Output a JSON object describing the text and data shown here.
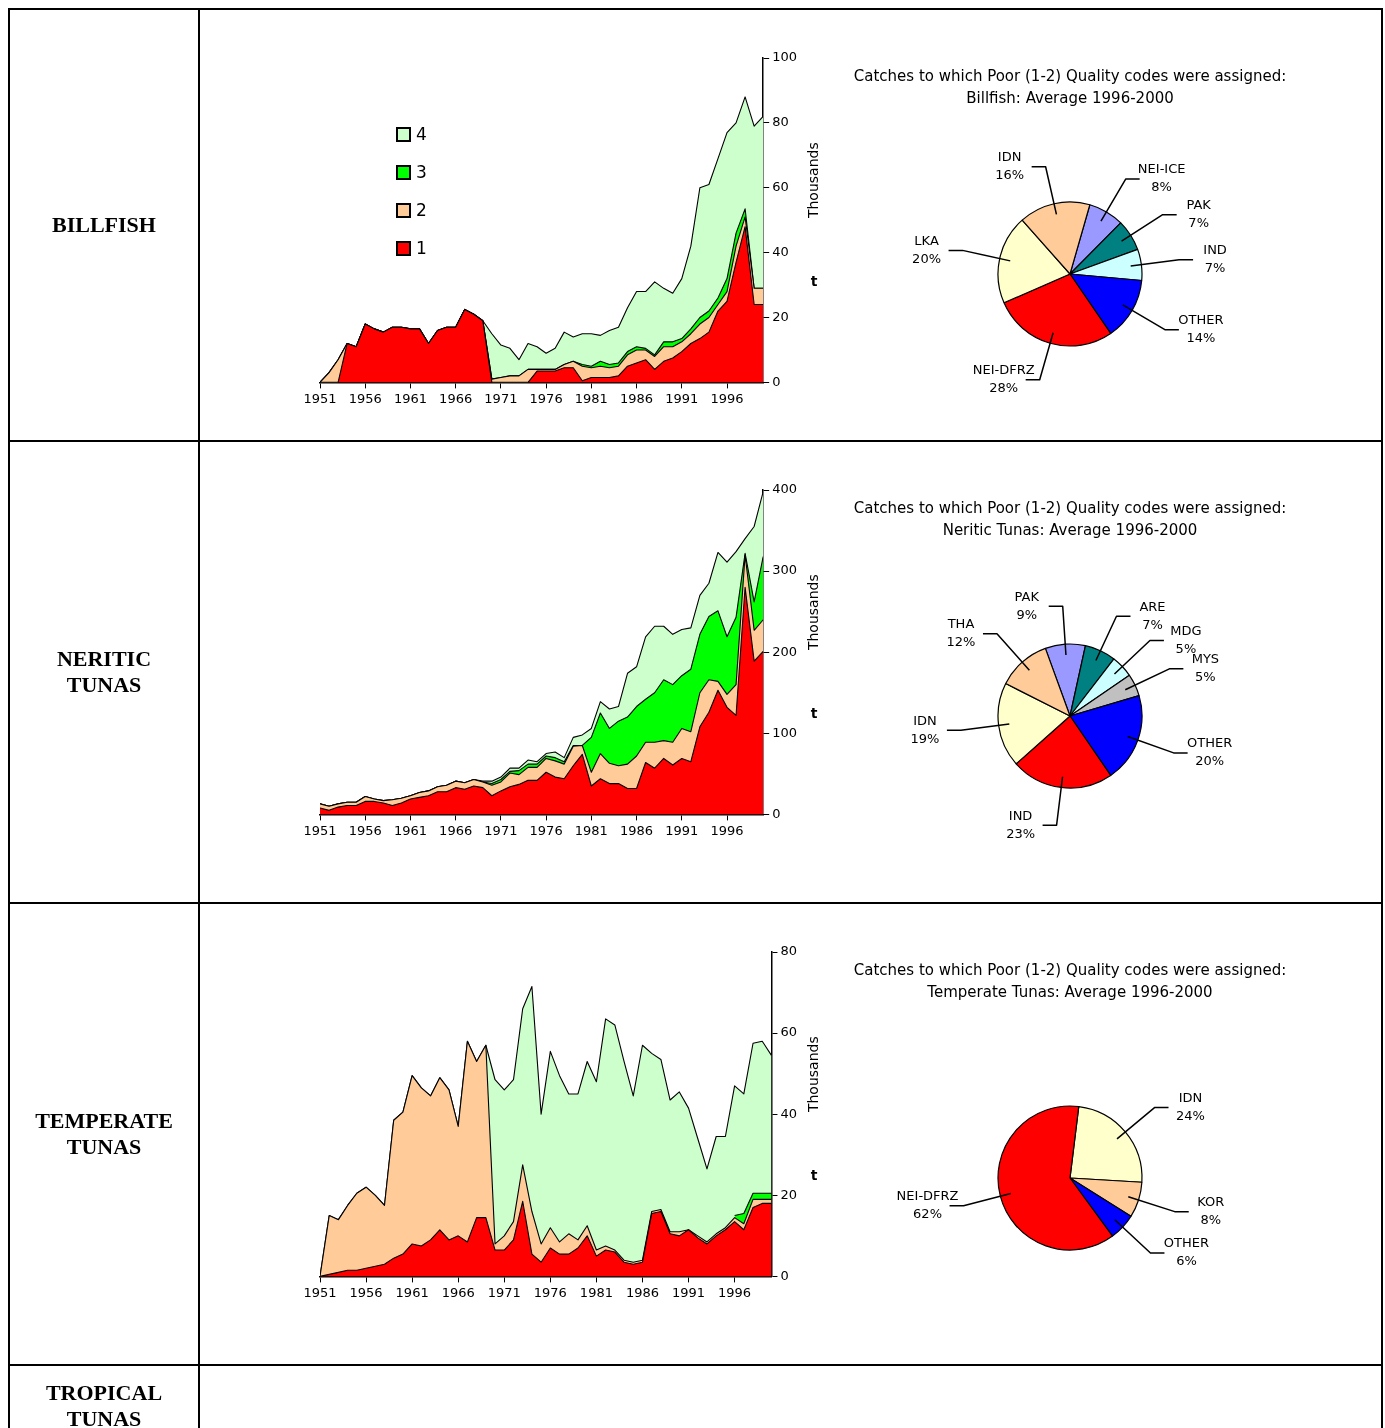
{
  "chart_data": [
    {
      "type": "other",
      "title": "BILLFISH"
    },
    {
      "type": "area",
      "ylabel": "Thousands",
      "annotations": [
        "t"
      ],
      "stacked": true,
      "legend": "top left",
      "marker": "none",
      "x": [
        1951,
        1952,
        1953,
        1954,
        1955,
        1956,
        1957,
        1958,
        1959,
        1960,
        1961,
        1962,
        1963,
        1964,
        1965,
        1966,
        1967,
        1968,
        1969,
        1970,
        1971,
        1972,
        1973,
        1974,
        1975,
        1976,
        1977,
        1978,
        1979,
        1980,
        1981,
        1982,
        1983,
        1984,
        1985,
        1986,
        1987,
        1988,
        1989,
        1990,
        1991,
        1992,
        1993,
        1994,
        1995,
        1996,
        1997,
        1998,
        1999,
        2000
      ],
      "xlim": [
        1951,
        2000
      ],
      "xticks": [
        1951,
        1956,
        1961,
        1966,
        1971,
        1976,
        1981,
        1986,
        1991,
        1996
      ],
      "ylim": [
        0,
        100
      ],
      "yticks": [
        0,
        20,
        40,
        60,
        80,
        100
      ],
      "series": [
        {
          "name": "1",
          "color": "#ff0000",
          "values": [
            0,
            0,
            0,
            12,
            11,
            18,
            16.5,
            15.5,
            17,
            17,
            16.5,
            16.5,
            12,
            16,
            17,
            17,
            22.5,
            21,
            19,
            0,
            0,
            0,
            0,
            0,
            3.5,
            3.5,
            3.5,
            4.5,
            4.5,
            0.5,
            1.5,
            1.5,
            1.5,
            2,
            5,
            6,
            7,
            4,
            6.5,
            7.5,
            9.5,
            12,
            13.5,
            15.5,
            22,
            25,
            37,
            48,
            24,
            24
          ]
        },
        {
          "name": "2",
          "color": "#ffcc99",
          "values": [
            0,
            3,
            7,
            0,
            0,
            0,
            0,
            0,
            0,
            0,
            0,
            0,
            0,
            0,
            0,
            0,
            0,
            0,
            0,
            1,
            1.5,
            2,
            2,
            4,
            0.5,
            0.5,
            0.5,
            1,
            2,
            4.5,
            3,
            3.5,
            3,
            3,
            3.5,
            4,
            3,
            4,
            4.5,
            3.5,
            3,
            3,
            4.5,
            4.5,
            2,
            3,
            5,
            3,
            5,
            5
          ]
        },
        {
          "name": "3",
          "color": "#00ff00",
          "values": [
            0,
            0,
            0,
            0,
            0,
            0,
            0,
            0,
            0,
            0,
            0,
            0,
            0,
            0,
            0,
            0,
            0,
            0,
            0,
            0,
            0,
            0,
            0,
            0,
            0,
            0,
            0,
            0,
            0,
            0.5,
            0.5,
            1.5,
            1,
            1,
            1,
            1,
            0.5,
            0.5,
            1.5,
            1.5,
            1,
            1.5,
            2,
            2,
            2,
            4,
            4,
            2.5,
            0,
            0
          ]
        },
        {
          "name": "4",
          "color": "#ccffcc",
          "values": [
            0,
            0,
            0,
            0,
            0,
            0,
            0,
            0,
            0,
            0,
            0,
            0,
            0,
            0,
            0,
            0,
            0,
            0,
            0,
            14,
            10,
            8.5,
            5,
            8,
            7,
            5,
            6.5,
            10,
            7.5,
            9.5,
            10,
            8,
            10.5,
            11,
            13.5,
            17,
            17.5,
            22.5,
            16.5,
            15,
            18.5,
            25.5,
            40,
            39,
            43,
            45,
            34,
            34.5,
            50,
            53
          ]
        }
      ]
    },
    {
      "type": "pie",
      "title": "Catches to which Poor (1-2) Quality codes were assigned:",
      "subtitle": "Billfish: Average 1996-2000",
      "categories": [
        "NEI-ICE",
        "PAK",
        "IND",
        "OTHER",
        "NEI-DFRZ",
        "LKA",
        "IDN"
      ],
      "values": [
        8,
        7,
        7,
        14,
        28,
        20,
        16
      ],
      "colors": [
        "#9999ff",
        "#008080",
        "#ccffff",
        "#0000ff",
        "#ff0000",
        "#ffffcc",
        "#ffcc99"
      ],
      "value_labels": [
        "8%",
        "7%",
        "7%",
        "14%",
        "28%",
        "20%",
        "16%"
      ]
    },
    {
      "type": "other",
      "title": "NERITIC TUNAS"
    },
    {
      "type": "area",
      "ylabel": "Thousands",
      "annotations": [
        "t"
      ],
      "stacked": true,
      "marker": "none",
      "x": [
        1951,
        1952,
        1953,
        1954,
        1955,
        1956,
        1957,
        1958,
        1959,
        1960,
        1961,
        1962,
        1963,
        1964,
        1965,
        1966,
        1967,
        1968,
        1969,
        1970,
        1971,
        1972,
        1973,
        1974,
        1975,
        1976,
        1977,
        1978,
        1979,
        1980,
        1981,
        1982,
        1983,
        1984,
        1985,
        1986,
        1987,
        1988,
        1989,
        1990,
        1991,
        1992,
        1993,
        1994,
        1995,
        1996,
        1997,
        1998,
        1999,
        2000
      ],
      "xlim": [
        1951,
        2000
      ],
      "xticks": [
        1951,
        1956,
        1961,
        1966,
        1971,
        1976,
        1981,
        1986,
        1991,
        1996
      ],
      "ylim": [
        0,
        400
      ],
      "yticks": [
        0,
        100,
        200,
        300,
        400
      ],
      "series": [
        {
          "color": "#ff0000",
          "values": [
            8,
            5,
            9,
            11,
            11,
            16,
            16,
            14,
            11,
            14,
            19,
            21,
            23,
            28,
            28,
            33,
            31,
            35,
            33,
            23,
            29,
            34,
            37,
            42,
            42,
            52,
            46,
            44,
            60,
            74,
            35,
            44,
            38,
            38,
            32,
            32,
            64,
            57,
            69,
            61,
            69,
            65,
            108,
            126,
            153,
            132,
            122,
            280,
            189,
            201
          ]
        },
        {
          "color": "#ffcc99",
          "values": [
            5,
            5,
            4,
            4,
            4,
            6,
            3,
            3,
            7,
            6,
            4,
            6,
            6,
            6,
            8,
            8,
            8,
            8,
            7,
            13,
            11,
            17,
            12,
            16,
            16,
            17,
            20,
            18,
            24,
            11,
            17,
            31,
            25,
            22,
            30,
            40,
            25,
            32,
            22,
            28,
            37,
            37,
            42,
            40,
            11,
            16,
            38,
            40,
            38,
            39
          ]
        },
        {
          "color": "#00ff00",
          "values": [
            0,
            0,
            0,
            0,
            0,
            0,
            0,
            0,
            0,
            0,
            0,
            0,
            0,
            0,
            0,
            0,
            0,
            0,
            0,
            2,
            3,
            2,
            5,
            4,
            4,
            3,
            4,
            3,
            1,
            0,
            43,
            50,
            43,
            55,
            58,
            61,
            53,
            61,
            75,
            71,
            65,
            77,
            72,
            78,
            87,
            71,
            83,
            2,
            35,
            78
          ]
        },
        {
          "color": "#ccffcc",
          "values": [
            0,
            0,
            0,
            0,
            0,
            0,
            0,
            0,
            0,
            0,
            0,
            0,
            0,
            0,
            0,
            0,
            0,
            0,
            1,
            3,
            3,
            4,
            3,
            5,
            3,
            3,
            7,
            5,
            10,
            13,
            11,
            14,
            24,
            18,
            54,
            49,
            77,
            82,
            66,
            62,
            57,
            51,
            48,
            41,
            72,
            92,
            81,
            18,
            93,
            80
          ]
        }
      ]
    },
    {
      "type": "pie",
      "title": "Catches to which Poor (1-2) Quality codes were assigned:",
      "subtitle": "Neritic Tunas: Average 1996-2000",
      "categories": [
        "PAK",
        "ARE",
        "MDG",
        "MYS",
        "OTHER",
        "IND",
        "IDN",
        "THA"
      ],
      "values": [
        9,
        7,
        5,
        5,
        20,
        23,
        19,
        12
      ],
      "colors": [
        "#9999ff",
        "#008080",
        "#ccffff",
        "#c0c0c0",
        "#0000ff",
        "#ff0000",
        "#ffffcc",
        "#ffcc99"
      ],
      "value_labels": [
        "9%",
        "7%",
        "5%",
        "5%",
        "20%",
        "23%",
        "19%",
        "12%"
      ]
    },
    {
      "type": "other",
      "title": "TEMPERATE TUNAS"
    },
    {
      "type": "area",
      "ylabel": "Thousands",
      "annotations": [
        "t"
      ],
      "stacked": true,
      "marker": "none",
      "x": [
        1951,
        1952,
        1953,
        1954,
        1955,
        1956,
        1957,
        1958,
        1959,
        1960,
        1961,
        1962,
        1963,
        1964,
        1965,
        1966,
        1967,
        1968,
        1969,
        1970,
        1971,
        1972,
        1973,
        1974,
        1975,
        1976,
        1977,
        1978,
        1979,
        1980,
        1981,
        1982,
        1983,
        1984,
        1985,
        1986,
        1987,
        1988,
        1989,
        1990,
        1991,
        1992,
        1993,
        1994,
        1995,
        1996,
        1997,
        1998,
        1999,
        2000
      ],
      "xlim": [
        1951,
        2000
      ],
      "xticks": [
        1951,
        1956,
        1961,
        1966,
        1971,
        1976,
        1981,
        1986,
        1991,
        1996
      ],
      "ylim": [
        0,
        80
      ],
      "yticks": [
        0,
        20,
        40,
        60,
        80
      ],
      "series": [
        {
          "color": "#ff0000",
          "values": [
            0,
            0.5,
            1,
            1.5,
            1.5,
            2,
            2.5,
            3,
            4.5,
            5.5,
            8,
            7.5,
            9,
            11.5,
            9,
            10,
            8.5,
            14.5,
            14.5,
            6.5,
            6.5,
            9,
            18.5,
            5.5,
            3.5,
            7,
            5.5,
            5.5,
            7,
            10,
            5,
            6.5,
            6,
            3.5,
            3,
            3.5,
            15.5,
            16,
            10.5,
            10,
            11.5,
            9.5,
            8,
            10,
            11.5,
            13.5,
            11.5,
            17,
            18,
            18
          ]
        },
        {
          "color": "#ffcc99",
          "values": [
            0,
            14.5,
            13,
            16,
            19,
            20,
            17.5,
            14.5,
            34,
            35,
            41.5,
            39,
            35.5,
            37.5,
            37,
            27,
            49.5,
            38.5,
            42.5,
            1.5,
            3.5,
            4.5,
            9,
            10.5,
            4.5,
            5,
            3,
            5,
            2,
            2.5,
            1.5,
            1,
            0.5,
            0.5,
            0.5,
            0.5,
            0.5,
            0.5,
            0.5,
            1,
            0,
            0.5,
            0.5,
            0.5,
            0.5,
            1,
            1.5,
            2,
            1,
            1
          ]
        },
        {
          "color": "#00ff00",
          "values": [
            null,
            null,
            null,
            null,
            null,
            null,
            null,
            null,
            null,
            null,
            null,
            null,
            null,
            null,
            null,
            null,
            null,
            null,
            null,
            null,
            null,
            null,
            null,
            null,
            null,
            null,
            null,
            null,
            null,
            null,
            null,
            null,
            null,
            null,
            null,
            null,
            null,
            null,
            null,
            null,
            null,
            null,
            null,
            null,
            null,
            0.5,
            2.5,
            1.5,
            1.5,
            1.5
          ]
        },
        {
          "color": "#ccffcc",
          "values": [
            0,
            0,
            0,
            0,
            0,
            0,
            0,
            0,
            0,
            0,
            0,
            0,
            0,
            0,
            0,
            0,
            0,
            0,
            0,
            40.5,
            36,
            35,
            38.5,
            55.5,
            32,
            43.5,
            41,
            34.5,
            36,
            40.5,
            41.5,
            56,
            55.5,
            49,
            41,
            53,
            39,
            37,
            32.5,
            34.5,
            30,
            24,
            18,
            24,
            22.5,
            32,
            29.5,
            37,
            37.5,
            34
          ]
        }
      ]
    },
    {
      "type": "pie",
      "title": "Catches to which Poor (1-2) Quality codes were assigned:",
      "subtitle": "Temperate Tunas: Average 1996-2000",
      "categories": [
        "IDN",
        "KOR",
        "OTHER",
        "NEI-DFRZ"
      ],
      "values": [
        24,
        8,
        6,
        62
      ],
      "colors": [
        "#ffffcc",
        "#ffcc99",
        "#0000ff",
        "#ff0000"
      ],
      "value_labels": [
        "24%",
        "8%",
        "6%",
        "62%"
      ]
    },
    {
      "type": "other",
      "title": "TROPICAL TUNAS"
    }
  ]
}
